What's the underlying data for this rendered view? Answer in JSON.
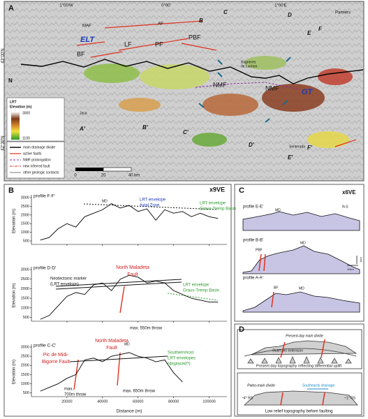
{
  "panel_a": {
    "texts": [
      "A",
      "1°00'W",
      "0°00'",
      "1°00'E",
      "43°00'N",
      "42°30'N",
      "Pamiers",
      "MAF",
      "AF",
      "B",
      "C",
      "D",
      "E",
      "F",
      "ELT",
      "LF",
      "PF",
      "PBF",
      "BF",
      "Bagneres",
      "de Luchon",
      "NMF",
      "NMF",
      "GT",
      "N",
      "LRT",
      "Elevation (m)",
      "3000",
      "1100",
      "Jaca",
      "A'",
      "B'",
      "C'",
      "D'",
      "E'",
      "F'",
      "Senterada",
      "0",
      "20",
      "40 km"
    ],
    "legend": [
      "main drainage divide",
      "active faults",
      "NMF prolongation",
      "new inferred fault",
      "other geologic contacts"
    ]
  },
  "panel_b": {
    "label": "B",
    "ve": "x9VE",
    "y_label": "Elevation (m)",
    "x_label": "Distance (m)",
    "xlim": [
      0,
      110000
    ],
    "xticks": [
      20000,
      40000,
      60000,
      80000,
      100000
    ],
    "profiles": [
      {
        "title": "profile F-F'",
        "ylim": [
          300,
          3000
        ],
        "yticks": [
          500,
          1000,
          1500,
          2000,
          2500,
          3000
        ],
        "x": [
          5000,
          10000,
          15000,
          20000,
          25000,
          30000,
          35000,
          40000,
          45000,
          50000,
          55000,
          60000,
          65000,
          70000,
          75000,
          80000,
          85000,
          90000,
          95000,
          100000,
          105000
        ],
        "values": [
          550,
          700,
          1200,
          1500,
          1300,
          1900,
          2100,
          2300,
          2650,
          2400,
          2550,
          2200,
          2350,
          1700,
          2300,
          2100,
          2200,
          1900,
          2100,
          1900,
          1800
        ]
      },
      {
        "title": "profile D-D'",
        "ylim": [
          300,
          3000
        ],
        "yticks": [
          500,
          1000,
          1500,
          2000,
          2500,
          3000
        ],
        "x": [
          5000,
          10000,
          15000,
          20000,
          25000,
          30000,
          35000,
          40000,
          45000,
          50000,
          55000,
          60000,
          65000,
          70000,
          75000,
          80000,
          85000,
          90000,
          95000,
          100000,
          105000
        ],
        "values": [
          400,
          600,
          1100,
          1600,
          1800,
          1700,
          2200,
          2300,
          1900,
          2500,
          2700,
          2600,
          2300,
          2400,
          2300,
          1900,
          1700,
          1500,
          1400,
          1300,
          1300
        ]
      },
      {
        "title": "profile C-C'",
        "ylim": [
          300,
          3000
        ],
        "yticks": [
          500,
          1000,
          1500,
          2000,
          2500,
          3000
        ],
        "x": [
          5000,
          10000,
          15000,
          20000,
          25000,
          30000,
          35000,
          40000,
          45000,
          50000,
          55000,
          60000,
          65000,
          70000,
          75000,
          80000,
          85000
        ],
        "values": [
          600,
          800,
          1000,
          1300,
          1500,
          2300,
          2400,
          2200,
          2500,
          2600,
          2700,
          2500,
          2400,
          2200,
          2300,
          1600,
          1100
        ]
      }
    ],
    "texts": [
      "MD",
      "LRT envelope",
      "Axial Zone",
      "LRT envelope",
      "Graus-Tremp Basin",
      "North Maladeta",
      "Fault",
      "Neotectonic marker",
      "(LRT envelops)",
      "LRT envelope",
      "Graus-Tremp Basin",
      "max. 550m throw",
      "Pic de Midi-",
      "Bigorre Fault",
      "North Maladeta",
      "Fault",
      "MD",
      "Southernmost",
      "LRT envelopes",
      "(displaced?)",
      "max.",
      "700m throw",
      "max. 650m throw"
    ]
  },
  "panel_c": {
    "texts": [
      "C",
      "x6VE",
      "profile E-E'",
      "MD",
      "N-S",
      "profile B-B'",
      "PBF",
      "MD",
      "1km",
      "10km",
      "profile A-A'",
      "BF",
      "MD"
    ]
  },
  "panel_d": {
    "texts": [
      "D",
      "Present-day main divide",
      "Outer-arc extension",
      "Present day topography reflecting differential uplift",
      "Paleo-main divide",
      "Southeards drainage",
      "~4° RS",
      "~1° RS",
      "Low relief topography before faulting"
    ]
  }
}
